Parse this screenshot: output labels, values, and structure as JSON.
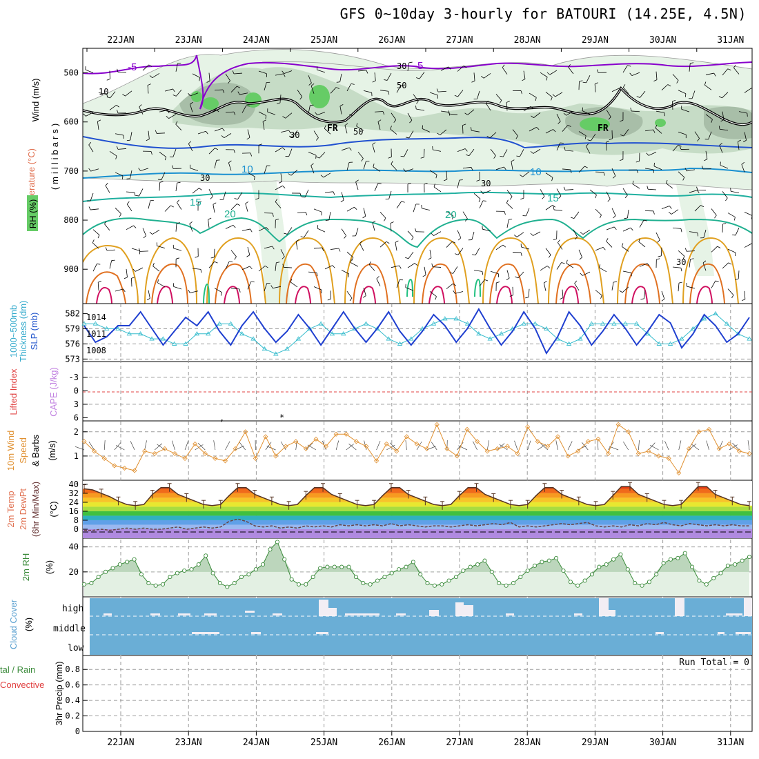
{
  "title": "GFS 0~10day 3-hourly for BATOURI (14.25E, 4.5N)",
  "colors": {
    "rh_green": "#66cc66",
    "rh_light": "#e6f3e6",
    "rh_mid": "#c6dcc6",
    "rh_dark": "#a8bea8",
    "slp": "#1f3fd0",
    "thickness": "#33bbcc",
    "wind_orange": "#e09030",
    "cloud": "#6aaed6",
    "rh2m": "#3a8a3a",
    "li": "#e04040",
    "cape": "#c080e0",
    "cloud_label": "#5aa0d0",
    "freezing": "#000000"
  },
  "chart_data": {
    "type": "meteogram",
    "x_labels": [
      "22JAN",
      "23JAN",
      "24JAN",
      "25JAN",
      "26JAN",
      "27JAN",
      "28JAN",
      "29JAN",
      "30JAN",
      "31JAN"
    ],
    "panels": {
      "upper_air": {
        "ylabel_wind": "Wind (m/s)",
        "ylabel_temp": "Temperature (°C)",
        "ylabel_levels": "(millibars)",
        "ylabel_rh": "RH (%)",
        "y_ticks": [
          500,
          600,
          700,
          800,
          900
        ],
        "ylim": [
          450,
          970
        ],
        "labels": {
          "t_m5a": "-5",
          "t_m5b": "-5",
          "fr_a": "FR",
          "fr_b": "FR",
          "t10a": "10",
          "t10b": "10",
          "t15a": "15",
          "t15b": "15",
          "t20a": "20",
          "t20b": "20",
          "rh10": "10",
          "rh30a": "30",
          "rh30b": "30",
          "rh30c": "30",
          "rh30d": "30",
          "rh50a": "50",
          "rh50b": "50",
          "rh30e": "30"
        }
      },
      "slp_thickness": {
        "ylabel_thk": "1000~500mb",
        "ylabel_thk2": "Thickness (dm)",
        "ylabel_slp": "SLP (mb)",
        "left_ticks": [
          582,
          579,
          576,
          573
        ],
        "right_ticks": [
          1014,
          1011,
          1008
        ],
        "slp": [
          1012.5,
          1009.5,
          1010.5,
          1012.5,
          1012.5,
          1015.0,
          1012.0,
          1009.0,
          1011.5,
          1014.0,
          1012.5,
          1015.0,
          1011.5,
          1009.0,
          1012.5,
          1015.0,
          1012.0,
          1009.5,
          1011.5,
          1014.5,
          1012.0,
          1009.0,
          1012.0,
          1015.0,
          1012.0,
          1009.5,
          1012.0,
          1015.0,
          1011.5,
          1009.0,
          1011.5,
          1014.5,
          1012.5,
          1009.5,
          1012.0,
          1015.5,
          1012.0,
          1009.0,
          1011.5,
          1015.0,
          1012.0,
          1007.5,
          1010.5,
          1015.0,
          1012.5,
          1009.0,
          1011.5,
          1014.5,
          1012.0,
          1009.0,
          1011.5,
          1014.5,
          1013.0,
          1008.5,
          1011.0,
          1014.5,
          1012.5,
          1009.5,
          1011.0,
          1014.0
        ],
        "thickness": [
          580,
          580,
          579,
          579,
          578,
          578,
          577,
          577,
          576,
          576,
          578,
          578,
          580,
          580,
          578,
          577,
          575,
          574,
          575,
          577,
          579,
          580,
          578,
          578,
          579,
          580,
          579,
          577,
          576,
          577,
          579,
          580,
          581,
          581,
          580,
          578,
          577,
          578,
          579,
          580,
          580,
          579,
          577,
          576,
          577,
          580,
          580,
          580,
          580,
          580,
          578,
          576,
          576,
          577,
          579,
          581,
          582,
          580,
          578,
          577
        ]
      },
      "stability": {
        "ylabel_li": "Lifted Index",
        "ylabel_cape": "CAPE (J/kg)",
        "ticks": [
          "-3",
          "0",
          "3",
          "6"
        ]
      },
      "wind10m": {
        "ylabel1": "10m Wind",
        "ylabel2": "Speed",
        "ylabel3": "& Barbs",
        "ylabel_units": "(m/s)",
        "ticks": [
          2,
          1
        ],
        "speed": [
          1.6,
          1.2,
          0.9,
          0.6,
          0.5,
          0.4,
          1.2,
          1.1,
          1.3,
          1.1,
          0.9,
          1.5,
          1.1,
          0.9,
          0.8,
          1.3,
          2.0,
          0.9,
          1.8,
          1.0,
          1.4,
          1.6,
          1.3,
          1.7,
          1.4,
          1.9,
          1.9,
          1.6,
          1.4,
          0.8,
          1.5,
          1.2,
          1.8,
          1.5,
          1.3,
          2.3,
          1.3,
          1.0,
          2.1,
          1.6,
          1.2,
          1.3,
          1.4,
          1.1,
          2.2,
          1.6,
          1.4,
          1.8,
          1.0,
          1.2,
          1.6,
          1.7,
          1.1,
          2.3,
          2.0,
          1.1,
          1.2,
          1.0,
          0.9,
          0.3,
          1.3,
          2.0,
          2.1,
          1.3,
          1.5,
          1.2,
          1.1
        ]
      },
      "temperature": {
        "ylabel1": "2m Temp",
        "ylabel2": "2m DewPt",
        "ylabel3": "(6hr Min/Max)",
        "ylabel_units": "(°C)",
        "ticks": [
          40,
          32,
          24,
          16,
          8,
          0
        ],
        "temp": [
          36,
          35,
          32,
          29,
          25,
          22,
          21,
          22,
          31,
          37,
          37,
          31,
          28,
          25,
          22,
          21,
          22,
          30,
          37,
          37,
          31,
          28,
          25,
          22,
          21,
          22,
          30,
          37,
          37,
          31,
          28,
          25,
          22,
          21,
          22,
          30,
          37,
          37,
          31,
          28,
          25,
          22,
          21,
          22,
          30,
          37,
          37,
          31,
          28,
          25,
          22,
          21,
          22,
          30,
          37,
          37,
          31,
          28,
          25,
          22,
          21,
          22,
          30,
          38,
          38,
          31,
          28,
          25,
          22,
          21,
          22,
          30,
          38,
          38,
          31,
          28,
          25,
          22,
          21
        ],
        "dewpoint": [
          -1,
          -1,
          0,
          -1,
          0,
          1,
          0,
          1,
          0,
          0,
          1,
          2,
          0,
          1,
          2,
          1,
          2,
          7,
          9,
          7,
          3,
          2,
          3,
          1,
          2,
          1,
          3,
          2,
          3,
          2,
          4,
          3,
          4,
          3,
          4,
          3,
          5,
          3,
          4,
          3,
          2,
          3,
          3,
          2,
          3,
          4,
          3,
          4,
          5,
          4,
          6,
          2,
          3,
          2,
          3,
          4,
          5,
          4,
          5,
          6,
          3,
          2,
          3,
          2,
          4,
          3,
          5,
          4,
          6,
          4,
          3,
          5,
          4,
          3,
          4,
          3,
          4,
          3,
          3
        ]
      },
      "rh2m": {
        "ylabel": "2m RH",
        "ylabel_units": "(%)",
        "ticks": [
          40,
          20
        ],
        "rh": [
          10,
          11,
          16,
          20,
          23,
          26,
          28,
          30,
          18,
          11,
          9,
          10,
          16,
          19,
          21,
          22,
          26,
          33,
          19,
          11,
          8,
          11,
          16,
          18,
          22,
          26,
          38,
          44,
          30,
          14,
          10,
          10,
          16,
          23,
          24,
          24,
          24,
          24,
          16,
          11,
          10,
          13,
          16,
          19,
          22,
          24,
          28,
          18,
          11,
          9,
          10,
          13,
          16,
          21,
          24,
          26,
          29,
          20,
          11,
          9,
          11,
          16,
          21,
          25,
          28,
          29,
          31,
          21,
          12,
          9,
          13,
          18,
          24,
          26,
          30,
          34,
          22,
          11,
          9,
          12,
          18,
          27,
          30,
          31,
          35,
          24,
          13,
          10,
          15,
          19,
          25,
          26,
          29,
          32
        ]
      },
      "cloud": {
        "ylabel1": "Cloud Cover",
        "ylabel_units": "(%)",
        "level_labels": [
          "high",
          "middle",
          "low"
        ]
      },
      "precip": {
        "ylabel_a": "tal / Rain",
        "ylabel_b": "Convective",
        "ylabel_c": "3hr Precip (mm)",
        "run_total": "Run Total = 0",
        "ticks": [
          "0.8",
          "0.6",
          "0.4",
          "0.2",
          "0"
        ]
      }
    }
  }
}
